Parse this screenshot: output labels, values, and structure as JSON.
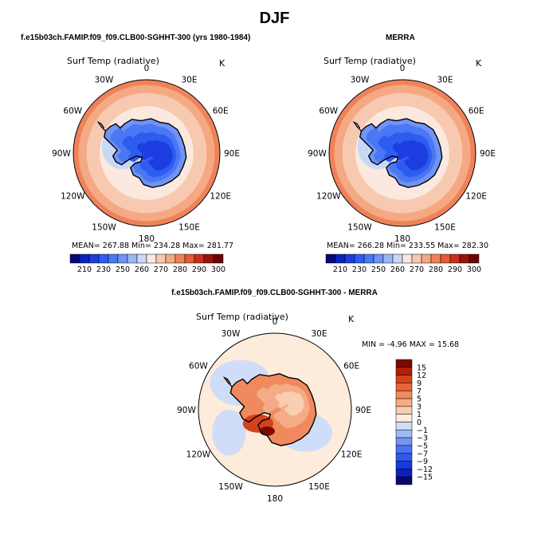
{
  "page": {
    "title": "DJF",
    "bottom_title": "f.e15b03ch.FAMIP.f09_f09.CLB00-SGHHT-300 - MERRA"
  },
  "panels": [
    {
      "id": "model",
      "heading": "f.e15b03ch.FAMIP.f09_f09.CLB00-SGHHT-300 (yrs 1980-1984)",
      "variable": "Surf Temp (radiative)",
      "units": "K",
      "stats": "MEAN= 267.88   Min= 234.28   Max= 281.77",
      "colorbar_ticks": [
        "210",
        "230",
        "250",
        "260",
        "270",
        "280",
        "290",
        "300"
      ]
    },
    {
      "id": "merra",
      "heading": "MERRA",
      "variable": "Surf Temp (radiative)",
      "units": "K",
      "stats": "MEAN= 266.28   Min= 233.55   Max= 282.30",
      "colorbar_ticks": [
        "210",
        "230",
        "250",
        "260",
        "270",
        "280",
        "290",
        "300"
      ]
    },
    {
      "id": "diff",
      "heading": "",
      "variable": "Surf Temp (radiative)",
      "units": "K",
      "stats": "MIN =   -4.96 MAX =   15.68",
      "colorbar_ticks": [
        "15",
        "12",
        "9",
        "7",
        "5",
        "3",
        "1",
        "0",
        "−1",
        "−3",
        "−5",
        "−7",
        "−9",
        "−12",
        "−15"
      ]
    }
  ],
  "map_labels": [
    "0",
    "30E",
    "60E",
    "90E",
    "120E",
    "150E",
    "180",
    "150W",
    "120W",
    "90W",
    "60W",
    "30W"
  ],
  "colors": {
    "abs_scale": [
      "#08087a",
      "#0a22c0",
      "#1c3ee0",
      "#2e5cf0",
      "#4a78f5",
      "#6f94f5",
      "#9cb6f4",
      "#c8d8f6",
      "#fbe8de",
      "#f7c9b0",
      "#f4a983",
      "#ef8259",
      "#e35a33",
      "#c8301a",
      "#9a1208",
      "#6a0400"
    ],
    "diff_scale": [
      "#06086e",
      "#0a20b8",
      "#1a3ad8",
      "#2f58ec",
      "#4b74f2",
      "#7494f4",
      "#a4baf6",
      "#d0ddf8",
      "#fdebdc",
      "#f8cdb2",
      "#f4ac86",
      "#f08a5e",
      "#e8653a",
      "#d4421c",
      "#b12008",
      "#7e0800"
    ]
  }
}
